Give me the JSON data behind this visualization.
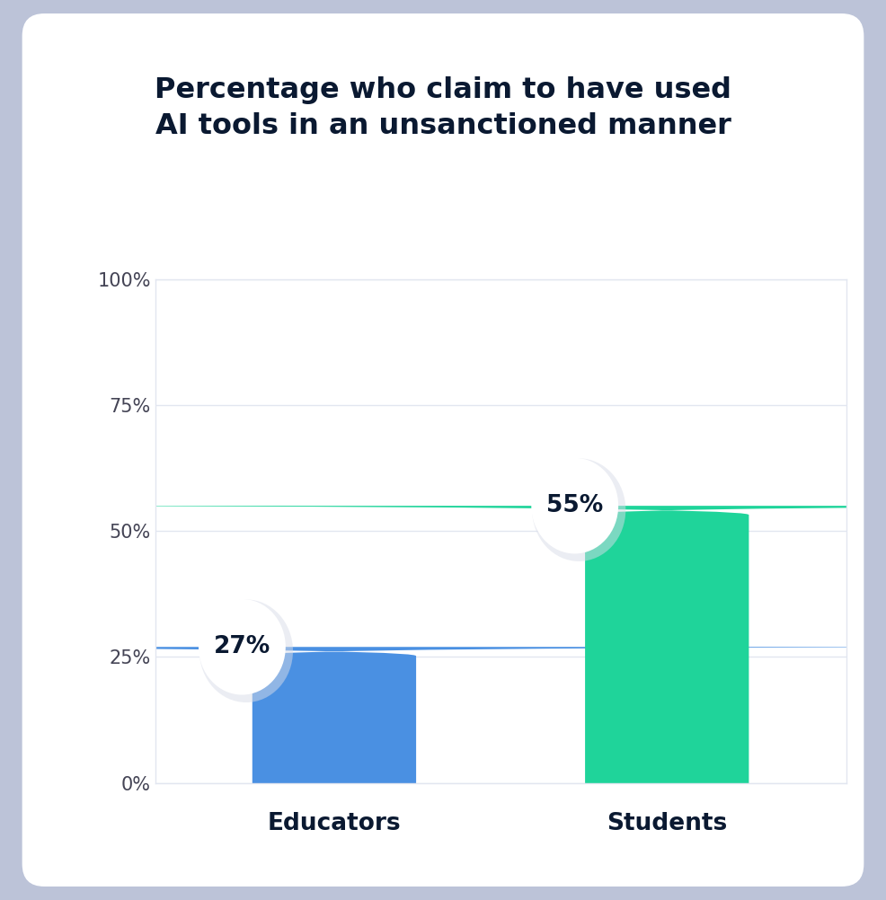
{
  "title_line1": "Percentage who claim to have used",
  "title_line2": "AI tools in an unsanctioned manner",
  "categories": [
    "Educators",
    "Students"
  ],
  "values": [
    27,
    55
  ],
  "bar_colors": [
    "#4A90E2",
    "#1FD49A"
  ],
  "background_outer": "#BCC3D8",
  "background_card": "#FFFFFF",
  "background_plot": "#FFFFFF",
  "grid_color": "#E2E6F0",
  "plot_border_color": "#E2E6F0",
  "title_color": "#0A1931",
  "tick_label_color": "#444455",
  "category_label_color": "#0A1931",
  "annotation_color": "#0A1931",
  "bubble_color": "#FFFFFF",
  "bubble_shadow_color": "#D8DCE8",
  "ylim": [
    0,
    100
  ],
  "yticks": [
    0,
    25,
    50,
    75,
    100
  ],
  "title_fontsize": 23,
  "tick_fontsize": 15,
  "category_fontsize": 19,
  "annotation_fontsize": 19,
  "bar_width": 0.32,
  "x_positions": [
    0.35,
    1.0
  ],
  "xlim": [
    0,
    1.35
  ]
}
